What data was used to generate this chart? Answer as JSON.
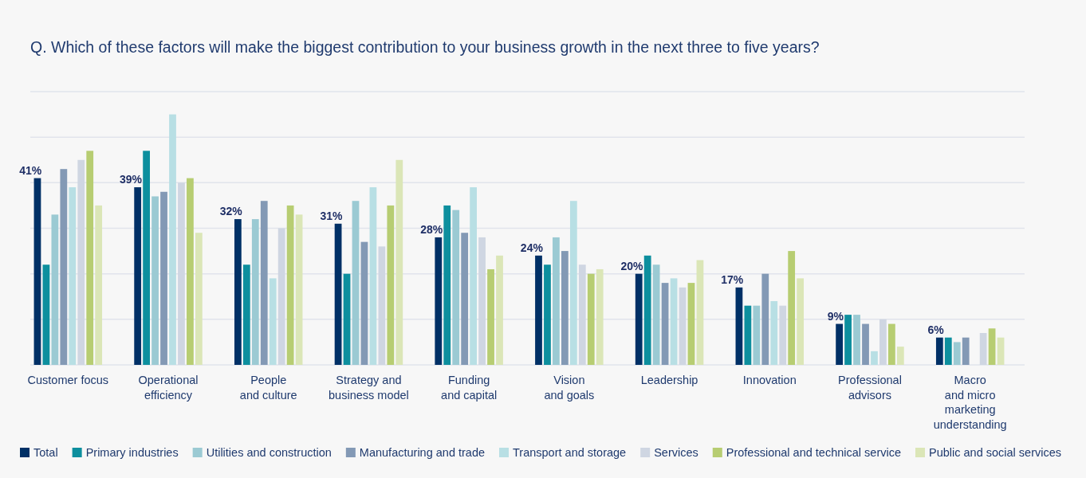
{
  "chart_data": {
    "type": "bar",
    "title": "Q. Which of these factors will make the biggest contribution to your business growth in the next three to five years?",
    "categories": [
      "Customer focus",
      "Operational\nefficiency",
      "People\nand culture",
      "Strategy and\nbusiness model",
      "Funding\nand capital",
      "Vision\nand goals",
      "Leadership",
      "Innovation",
      "Professional\nadvisors",
      "Macro\nand micro\nmarketing\nunderstanding"
    ],
    "series": [
      {
        "name": "Total",
        "color": "#003066",
        "values": [
          41,
          39,
          32,
          31,
          28,
          24,
          20,
          17,
          9,
          6
        ],
        "value_labels": [
          "41%",
          "39%",
          "32%",
          "31%",
          "28%",
          "24%",
          "20%",
          "17%",
          "9%",
          "6%"
        ]
      },
      {
        "name": "Primary industries",
        "color": "#0d8f9e",
        "values": [
          22,
          47,
          22,
          20,
          35,
          22,
          24,
          13,
          11,
          6
        ]
      },
      {
        "name": "Utilities and construction",
        "color": "#9bcad3",
        "values": [
          33,
          37,
          32,
          36,
          34,
          28,
          22,
          13,
          11,
          5
        ]
      },
      {
        "name": "Manufacturing and trade",
        "color": "#8399b5",
        "values": [
          43,
          38,
          36,
          27,
          29,
          25,
          18,
          20,
          9,
          6
        ]
      },
      {
        "name": "Transport and storage",
        "color": "#b8dfe4",
        "values": [
          39,
          55,
          19,
          39,
          39,
          36,
          19,
          14,
          3,
          0
        ]
      },
      {
        "name": "Services",
        "color": "#cfd6e2",
        "values": [
          45,
          40,
          30,
          26,
          28,
          22,
          17,
          13,
          10,
          7
        ]
      },
      {
        "name": "Professional and technical service",
        "color": "#b7cd72",
        "values": [
          47,
          41,
          35,
          35,
          21,
          20,
          18,
          25,
          9,
          8
        ]
      },
      {
        "name": "Public and social services",
        "color": "#dbe6b7",
        "values": [
          35,
          29,
          33,
          45,
          24,
          21,
          23,
          19,
          4,
          6
        ]
      }
    ],
    "ylim": [
      0,
      60
    ],
    "yticks": [
      {
        "value": 0,
        "label": null
      },
      {
        "value": 10,
        "label": null
      },
      {
        "value": 20,
        "label": null
      },
      {
        "value": 30,
        "label": null
      },
      {
        "value": 40,
        "label": null
      },
      {
        "value": 50,
        "label": null
      },
      {
        "value": 60,
        "label": null
      }
    ],
    "grid": "y",
    "tick_labels": "x",
    "legend": "bottom"
  }
}
